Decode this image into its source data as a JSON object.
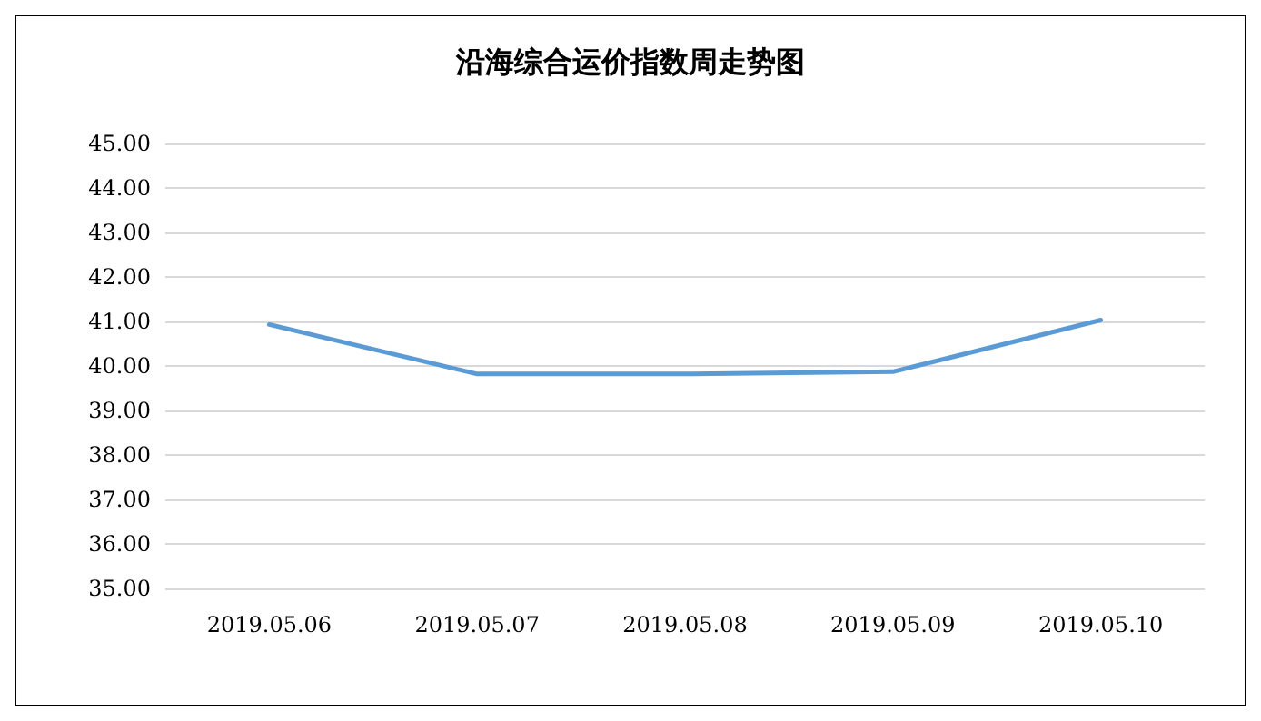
{
  "chart_data": {
    "type": "line",
    "title": "沿海综合运价指数周走势图",
    "categories": [
      "2019.05.06",
      "2019.05.07",
      "2019.05.08",
      "2019.05.09",
      "2019.05.10"
    ],
    "series": [
      {
        "color": "#5b9bd5",
        "values": [
          40.93,
          39.82,
          39.82,
          39.87,
          41.03
        ]
      }
    ],
    "ylim": [
      35,
      45
    ],
    "yticks": [
      {
        "value": 35,
        "label": "35.00"
      },
      {
        "value": 36,
        "label": "36.00"
      },
      {
        "value": 37,
        "label": "37.00"
      },
      {
        "value": 38,
        "label": "38.00"
      },
      {
        "value": 39,
        "label": "39.00"
      },
      {
        "value": 40,
        "label": "40.00"
      },
      {
        "value": 41,
        "label": "41.00"
      },
      {
        "value": 42,
        "label": "42.00"
      },
      {
        "value": 43,
        "label": "43.00"
      },
      {
        "value": 44,
        "label": "44.00"
      },
      {
        "value": 45,
        "label": "45.00"
      }
    ],
    "grid": "y",
    "marker": "none",
    "line_style": "solid"
  }
}
